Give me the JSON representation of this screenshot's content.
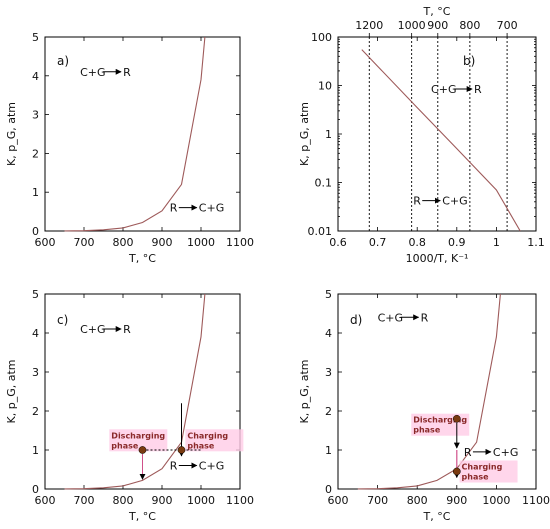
{
  "colors": {
    "curve": "#9e5a5a",
    "point_fill": "#7a3a10",
    "highlight": "#ffcce6",
    "phase_text": "#8a2a2a"
  },
  "chart_data": [
    {
      "id": "a",
      "type": "line",
      "panel_label": "a)",
      "xlabel": "T, °C",
      "ylabel": "K, p_G, atm",
      "xlim": [
        600,
        1100
      ],
      "ylim": [
        0,
        5
      ],
      "x_ticks": [
        600,
        700,
        800,
        900,
        1000,
        1100
      ],
      "y_ticks": [
        0,
        1,
        2,
        3,
        4,
        5
      ],
      "series": [
        {
          "x": [
            650,
            700,
            750,
            800,
            850,
            900,
            950,
            1000,
            1010
          ],
          "y": [
            0.002,
            0.008,
            0.03,
            0.08,
            0.22,
            0.52,
            1.2,
            3.9,
            5.0
          ]
        }
      ],
      "annotations": [
        {
          "text": "C+G",
          "product": "R",
          "x": 690,
          "y": 4.0
        },
        {
          "text": "R",
          "product": "C+G",
          "x": 920,
          "y": 0.5
        }
      ]
    },
    {
      "id": "b",
      "type": "line",
      "panel_label": "b)",
      "xlabel": "1000/T, K⁻¹",
      "ylabel": "K, p_G, atm",
      "top_xlabel": "T, °C",
      "xlim": [
        0.6,
        1.1
      ],
      "ylim": [
        0.01,
        100
      ],
      "yscale": "log",
      "x_ticks": [
        0.6,
        0.7,
        0.8,
        0.9,
        1.0,
        1.1
      ],
      "x_tick_labels": [
        "0.6",
        "0.7",
        "0.8",
        "0.9",
        "1",
        "1.1"
      ],
      "y_ticks": [
        0.01,
        0.1,
        1,
        10,
        100
      ],
      "y_tick_labels": [
        "0.01",
        "0.1",
        "1",
        "10",
        "100"
      ],
      "top_ticks": [
        1200,
        1000,
        900,
        800,
        700
      ],
      "top_tick_positions_inv": [
        0.679,
        0.786,
        0.852,
        0.933,
        1.027
      ],
      "series": [
        {
          "x": [
            0.66,
            0.7,
            0.8,
            0.9,
            1.0,
            1.06
          ],
          "y": [
            55,
            25,
            3.5,
            0.5,
            0.07,
            0.01
          ]
        }
      ],
      "annotations": [
        {
          "text": "C+G",
          "product": "R",
          "x": 0.835,
          "y": 7
        },
        {
          "text": "R",
          "product": "C+G",
          "x": 0.79,
          "y": 0.035
        }
      ]
    },
    {
      "id": "c",
      "type": "line",
      "panel_label": "c)",
      "xlabel": "T, °C",
      "ylabel": "K, p_G, atm",
      "xlim": [
        600,
        1100
      ],
      "ylim": [
        0,
        5
      ],
      "x_ticks": [
        600,
        700,
        800,
        900,
        1000,
        1100
      ],
      "y_ticks": [
        0,
        1,
        2,
        3,
        4,
        5
      ],
      "series": [
        {
          "x": [
            650,
            700,
            750,
            800,
            850,
            900,
            950,
            1000,
            1010
          ],
          "y": [
            0.002,
            0.008,
            0.03,
            0.08,
            0.22,
            0.52,
            1.2,
            3.9,
            5.0
          ]
        }
      ],
      "points": [
        {
          "x": 850,
          "y": 1.0
        },
        {
          "x": 950,
          "y": 1.0
        }
      ],
      "annotations": [
        {
          "text": "C+G",
          "product": "R",
          "x": 690,
          "y": 4.0
        },
        {
          "text": "R",
          "product": "C+G",
          "x": 920,
          "y": 0.5
        }
      ],
      "phases": [
        {
          "text1": "Discharging",
          "text2": "phase",
          "x": 770,
          "y": 1.3
        },
        {
          "text1": "Charging",
          "text2": "phase",
          "x": 965,
          "y": 1.3
        }
      ]
    },
    {
      "id": "d",
      "type": "line",
      "panel_label": "d)",
      "xlabel": "T, °C",
      "ylabel": "K, p_G, atm",
      "xlim": [
        600,
        1100
      ],
      "ylim": [
        0,
        5
      ],
      "x_ticks": [
        600,
        700,
        800,
        900,
        1000,
        1100
      ],
      "y_ticks": [
        0,
        1,
        2,
        3,
        4,
        5
      ],
      "series": [
        {
          "x": [
            650,
            700,
            750,
            800,
            850,
            900,
            950,
            1000,
            1010
          ],
          "y": [
            0.002,
            0.008,
            0.03,
            0.08,
            0.22,
            0.52,
            1.2,
            3.9,
            5.0
          ]
        }
      ],
      "points": [
        {
          "x": 900,
          "y": 1.8
        },
        {
          "x": 900,
          "y": 0.45
        }
      ],
      "annotations": [
        {
          "text": "C+G",
          "product": "R",
          "x": 700,
          "y": 4.3
        },
        {
          "text": "R",
          "product": "C+G",
          "x": 918,
          "y": 0.85
        }
      ],
      "phases": [
        {
          "text1": "Discharging",
          "text2": "phase",
          "x": 790,
          "y": 1.7
        },
        {
          "text1": "Charging",
          "text2": "phase",
          "x": 912,
          "y": 0.5
        }
      ]
    }
  ]
}
